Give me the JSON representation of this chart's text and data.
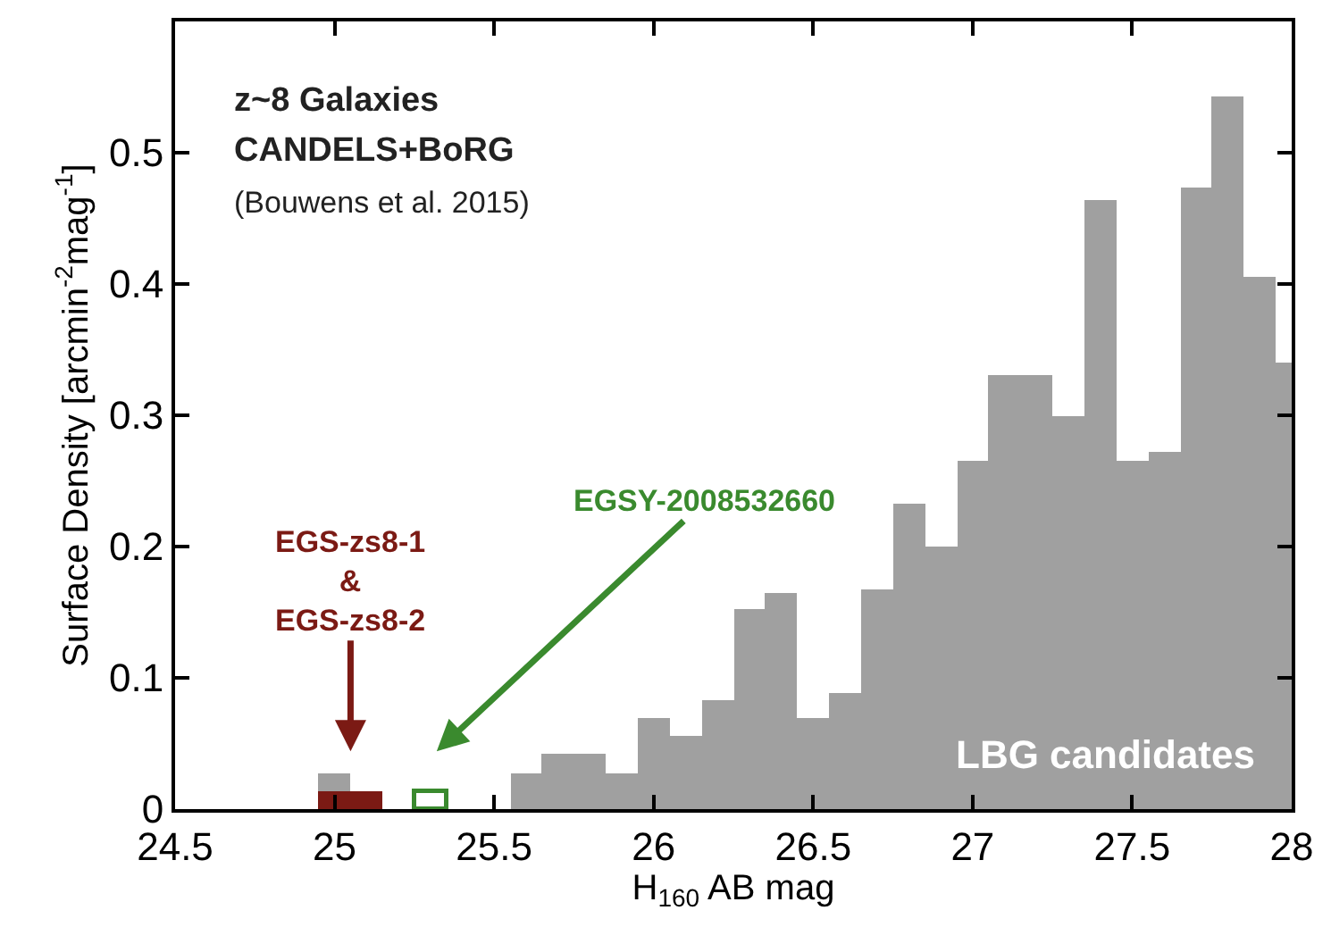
{
  "chart_data": {
    "type": "bar",
    "xlabel": "H$_{160}$ AB mag",
    "ylabel": "Surface Density [arcmin$^{-2}$mag$^{-1}$]",
    "annotations": [
      "z~8 Galaxies",
      "CANDELS+BoRG",
      "(Bouwens et al. 2015)"
    ],
    "xlim": [
      24.5,
      28
    ],
    "xticks": [
      24.5,
      25,
      25.5,
      26,
      26.5,
      27,
      27.5,
      28
    ],
    "ylim": [
      0,
      0.6
    ],
    "yticks": [
      0,
      0.1,
      0.2,
      0.3,
      0.4,
      0.5
    ],
    "legend": false,
    "series": [
      {
        "name": "LBG candidates",
        "color": "#a0a0a0",
        "x": [
          25.0,
          25.6,
          25.7,
          25.8,
          25.9,
          26.0,
          26.1,
          26.2,
          26.3,
          26.4,
          26.5,
          26.6,
          26.7,
          26.8,
          26.9,
          27.0,
          27.1,
          27.2,
          27.3,
          27.4,
          27.5,
          27.6,
          27.7,
          27.8,
          27.9,
          28.0
        ],
        "values": [
          0.027,
          0.027,
          0.042,
          0.042,
          0.027,
          0.069,
          0.056,
          0.083,
          0.152,
          0.165,
          0.07,
          0.089,
          0.167,
          0.233,
          0.2,
          0.265,
          0.331,
          0.331,
          0.299,
          0.464,
          0.265,
          0.272,
          0.474,
          0.543,
          0.406,
          0.34
        ]
      },
      {
        "name": "EGS-zs8-1\n&\nEGS-zs8-2",
        "color": "#7b1a14",
        "x": [
          25.0,
          25.1
        ],
        "values": [
          0.014,
          0.014
        ]
      },
      {
        "name": "EGSY-2008532660",
        "color": "#3a8a2e",
        "line_style": "solid",
        "x": [
          25.3
        ],
        "values": [
          0.014
        ]
      }
    ]
  }
}
